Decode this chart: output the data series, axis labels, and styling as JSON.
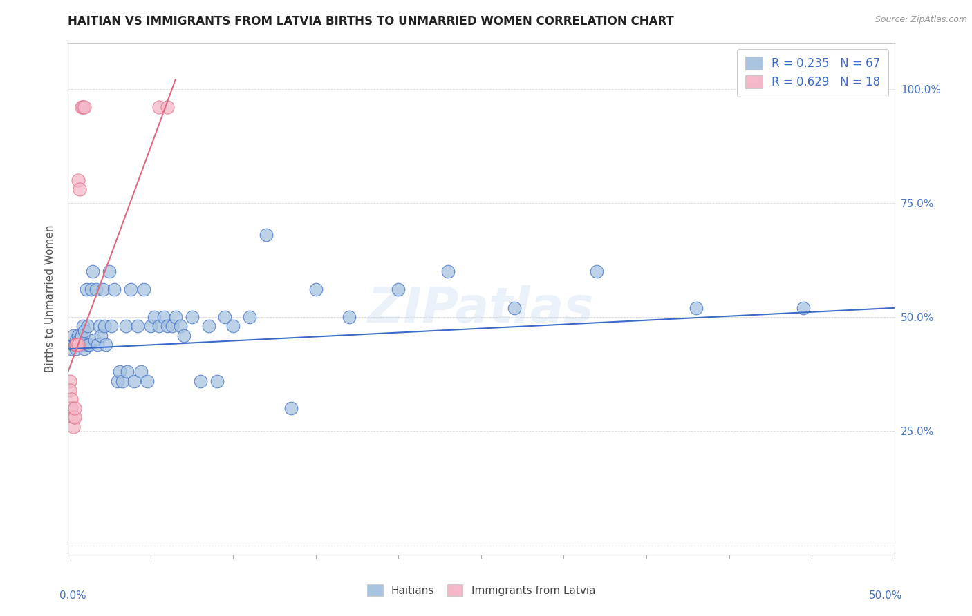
{
  "title": "HAITIAN VS IMMIGRANTS FROM LATVIA BIRTHS TO UNMARRIED WOMEN CORRELATION CHART",
  "source": "Source: ZipAtlas.com",
  "ylabel": "Births to Unmarried Women",
  "xlim": [
    0.0,
    0.5
  ],
  "ylim": [
    -0.02,
    1.1
  ],
  "color_haitian": "#a8c4e0",
  "color_latvia": "#f4b8c8",
  "trendline_color_haitian": "#3a6bc8",
  "trendline_color_latvia": "#e06880",
  "watermark": "ZIPatlas",
  "haitian_x": [
    0.002,
    0.003,
    0.003,
    0.004,
    0.005,
    0.005,
    0.006,
    0.007,
    0.008,
    0.008,
    0.009,
    0.01,
    0.01,
    0.011,
    0.012,
    0.012,
    0.013,
    0.014,
    0.015,
    0.016,
    0.017,
    0.018,
    0.019,
    0.02,
    0.021,
    0.022,
    0.023,
    0.025,
    0.026,
    0.028,
    0.03,
    0.031,
    0.033,
    0.035,
    0.036,
    0.038,
    0.04,
    0.042,
    0.044,
    0.046,
    0.048,
    0.05,
    0.052,
    0.055,
    0.058,
    0.06,
    0.063,
    0.065,
    0.068,
    0.07,
    0.075,
    0.08,
    0.085,
    0.09,
    0.095,
    0.1,
    0.11,
    0.12,
    0.135,
    0.15,
    0.17,
    0.2,
    0.23,
    0.27,
    0.32,
    0.38,
    0.445
  ],
  "haitian_y": [
    0.43,
    0.44,
    0.46,
    0.44,
    0.43,
    0.45,
    0.46,
    0.45,
    0.44,
    0.46,
    0.48,
    0.43,
    0.47,
    0.56,
    0.44,
    0.48,
    0.44,
    0.56,
    0.6,
    0.45,
    0.56,
    0.44,
    0.48,
    0.46,
    0.56,
    0.48,
    0.44,
    0.6,
    0.48,
    0.56,
    0.36,
    0.38,
    0.36,
    0.48,
    0.38,
    0.56,
    0.36,
    0.48,
    0.38,
    0.56,
    0.36,
    0.48,
    0.5,
    0.48,
    0.5,
    0.48,
    0.48,
    0.5,
    0.48,
    0.46,
    0.5,
    0.36,
    0.48,
    0.36,
    0.5,
    0.48,
    0.5,
    0.68,
    0.3,
    0.56,
    0.5,
    0.56,
    0.6,
    0.52,
    0.6,
    0.52,
    0.52
  ],
  "latvia_x": [
    0.001,
    0.001,
    0.002,
    0.002,
    0.003,
    0.003,
    0.004,
    0.004,
    0.005,
    0.005,
    0.006,
    0.006,
    0.007,
    0.008,
    0.009,
    0.01,
    0.055,
    0.06
  ],
  "latvia_y": [
    0.36,
    0.34,
    0.32,
    0.3,
    0.28,
    0.26,
    0.28,
    0.3,
    0.44,
    0.44,
    0.44,
    0.8,
    0.78,
    0.96,
    0.96,
    0.96,
    0.96,
    0.96
  ]
}
